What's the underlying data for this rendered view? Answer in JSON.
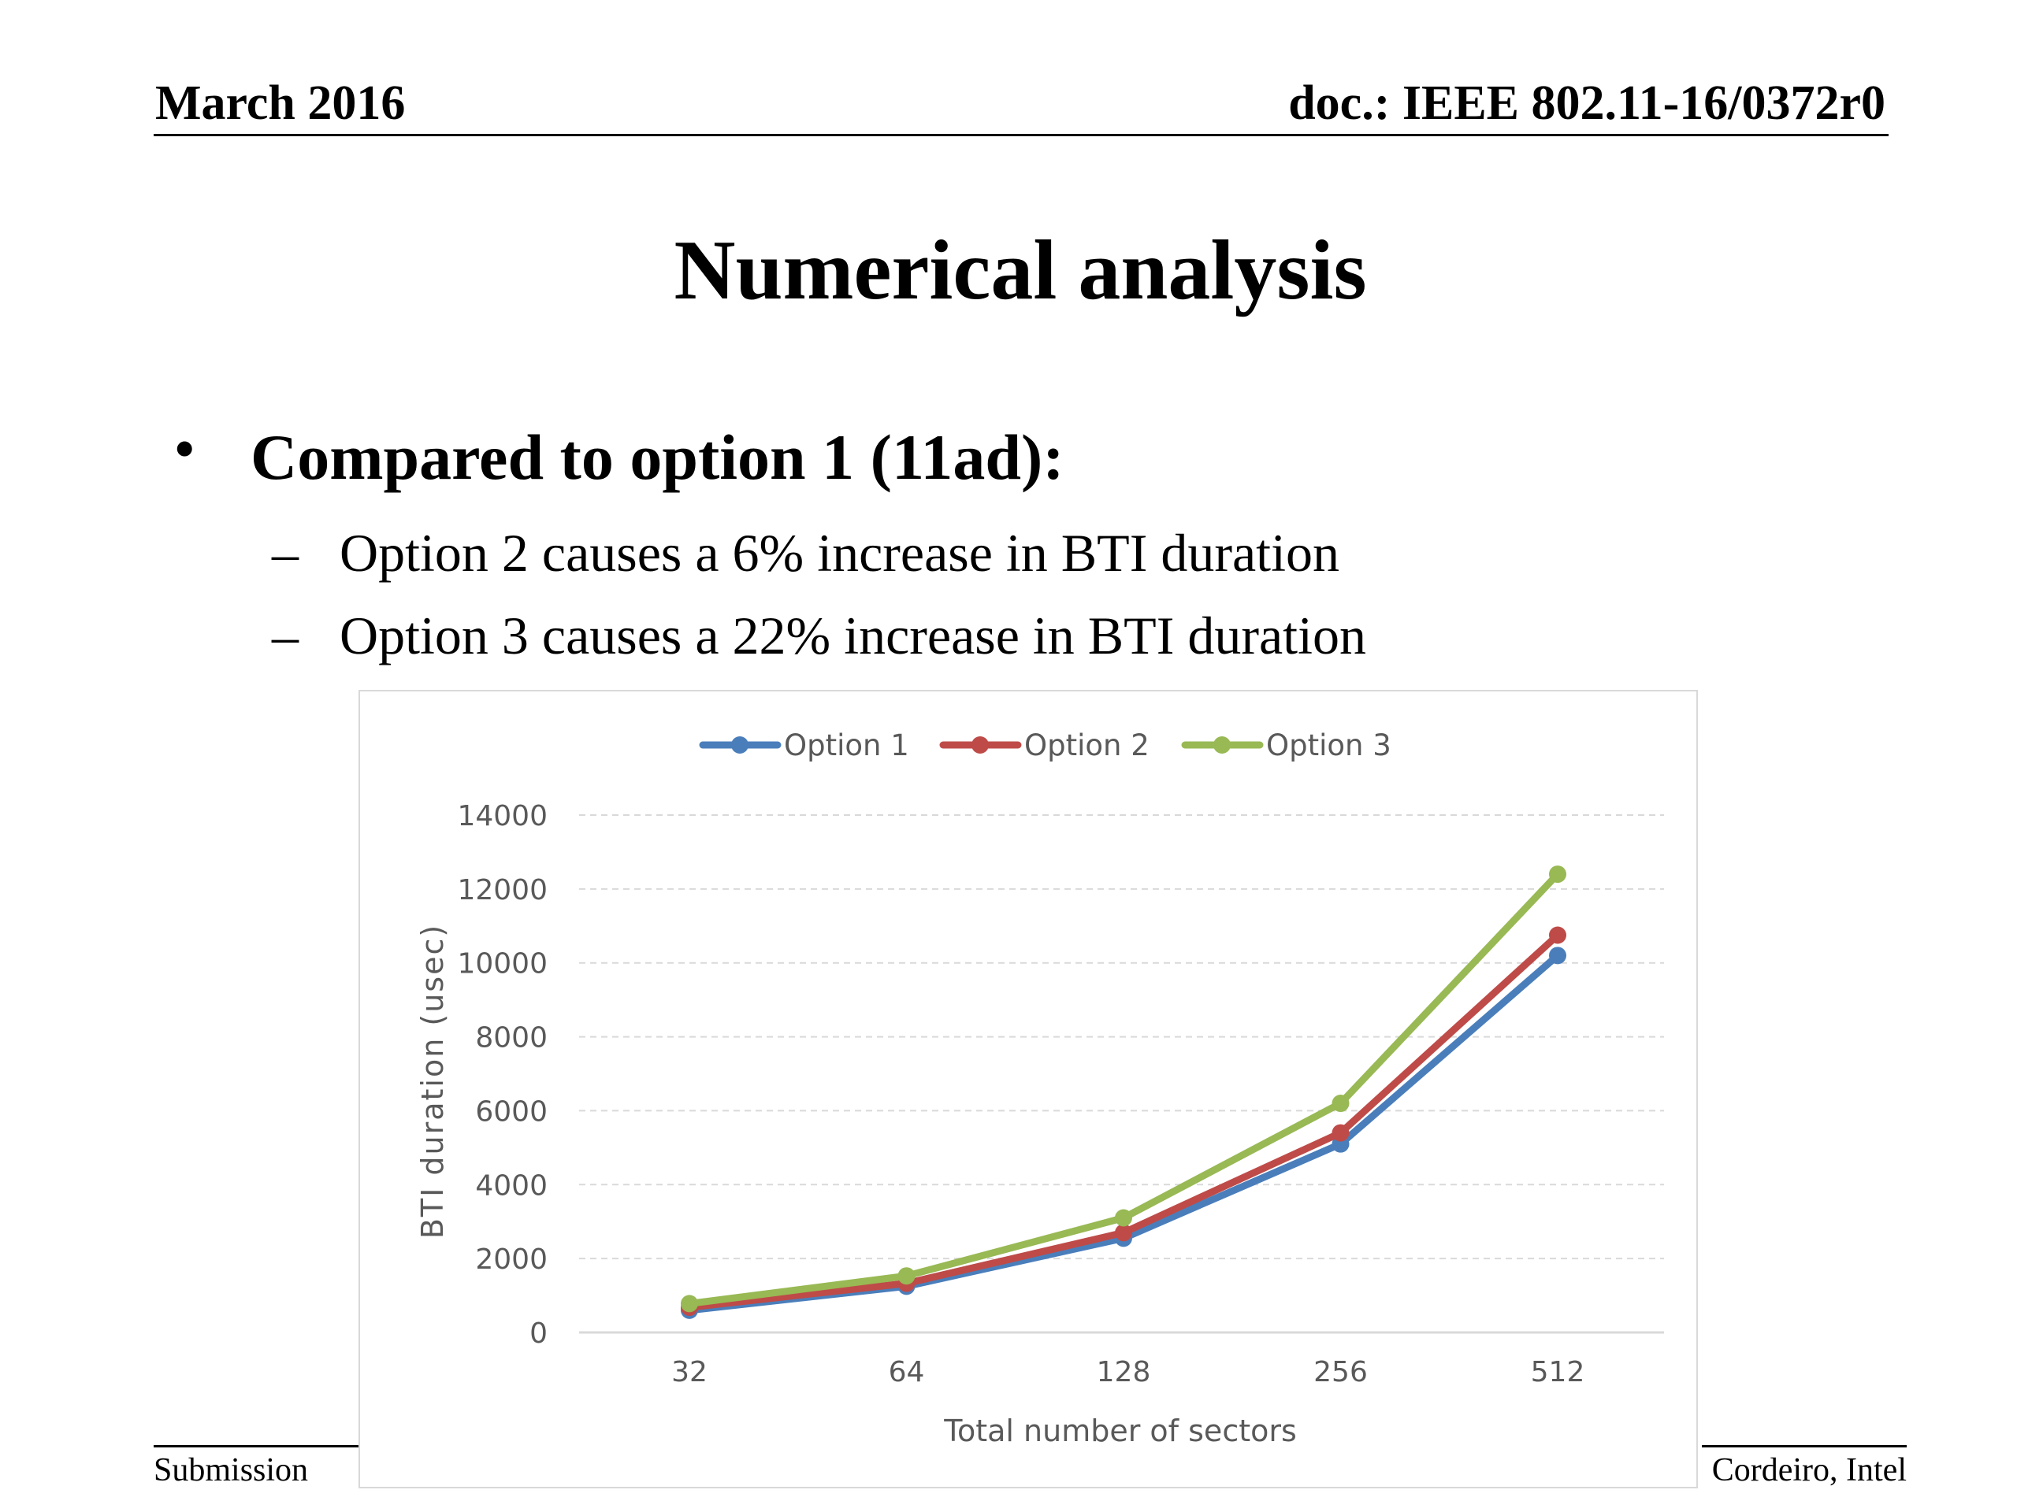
{
  "header": {
    "date": "March 2016",
    "doc": "doc.: IEEE 802.11-16/0372r0"
  },
  "slide": {
    "title": "Numerical analysis",
    "bullet": "Compared to option 1 (11ad):",
    "sub_bullets": [
      "Option 2 causes a 6% increase in BTI duration",
      "Option 3 causes a 22% increase in BTI duration"
    ]
  },
  "footer": {
    "left": "Submission",
    "right": "Cordeiro, Intel"
  },
  "chart_data": {
    "type": "line",
    "categories": [
      "32",
      "64",
      "128",
      "256",
      "512"
    ],
    "series": [
      {
        "name": "Option 1",
        "color": "#4a7ebb",
        "values": [
          600,
          1250,
          2550,
          5100,
          10200
        ]
      },
      {
        "name": "Option 2",
        "color": "#be4b48",
        "values": [
          680,
          1330,
          2700,
          5400,
          10750
        ]
      },
      {
        "name": "Option 3",
        "color": "#98b954",
        "values": [
          780,
          1530,
          3100,
          6200,
          12400
        ]
      }
    ],
    "xlabel": "Total number of sectors",
    "ylabel": "BTI duration (usec)",
    "ylim": [
      0,
      14000
    ],
    "yticks": [
      "0",
      "2000",
      "4000",
      "6000",
      "8000",
      "10000",
      "12000",
      "14000"
    ],
    "grid": "horizontal dashed",
    "legend": "top"
  }
}
